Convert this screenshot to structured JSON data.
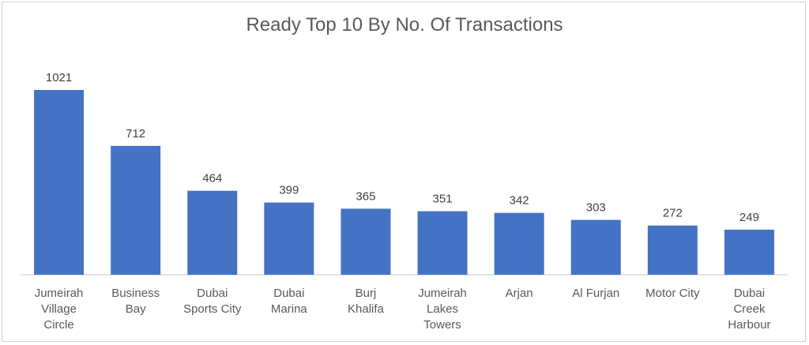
{
  "chart_data": {
    "type": "bar",
    "title": "Ready Top 10 By No. Of Transactions",
    "xlabel": "",
    "ylabel": "",
    "categories": [
      [
        "Jumeirah",
        "Village",
        "Circle"
      ],
      [
        "Business",
        "Bay"
      ],
      [
        "Dubai",
        "Sports City"
      ],
      [
        "Dubai",
        "Marina"
      ],
      [
        "Burj",
        "Khalifa"
      ],
      [
        "Jumeirah",
        "Lakes",
        "Towers"
      ],
      [
        "Arjan"
      ],
      [
        "Al Furjan"
      ],
      [
        "Motor City"
      ],
      [
        "Dubai",
        "Creek",
        "Harbour"
      ]
    ],
    "values": [
      1021,
      712,
      464,
      399,
      365,
      351,
      342,
      303,
      272,
      249
    ],
    "ylim": [
      0,
      1021
    ],
    "grid": false,
    "data_labels": true,
    "bar_color": "#4472C4"
  }
}
